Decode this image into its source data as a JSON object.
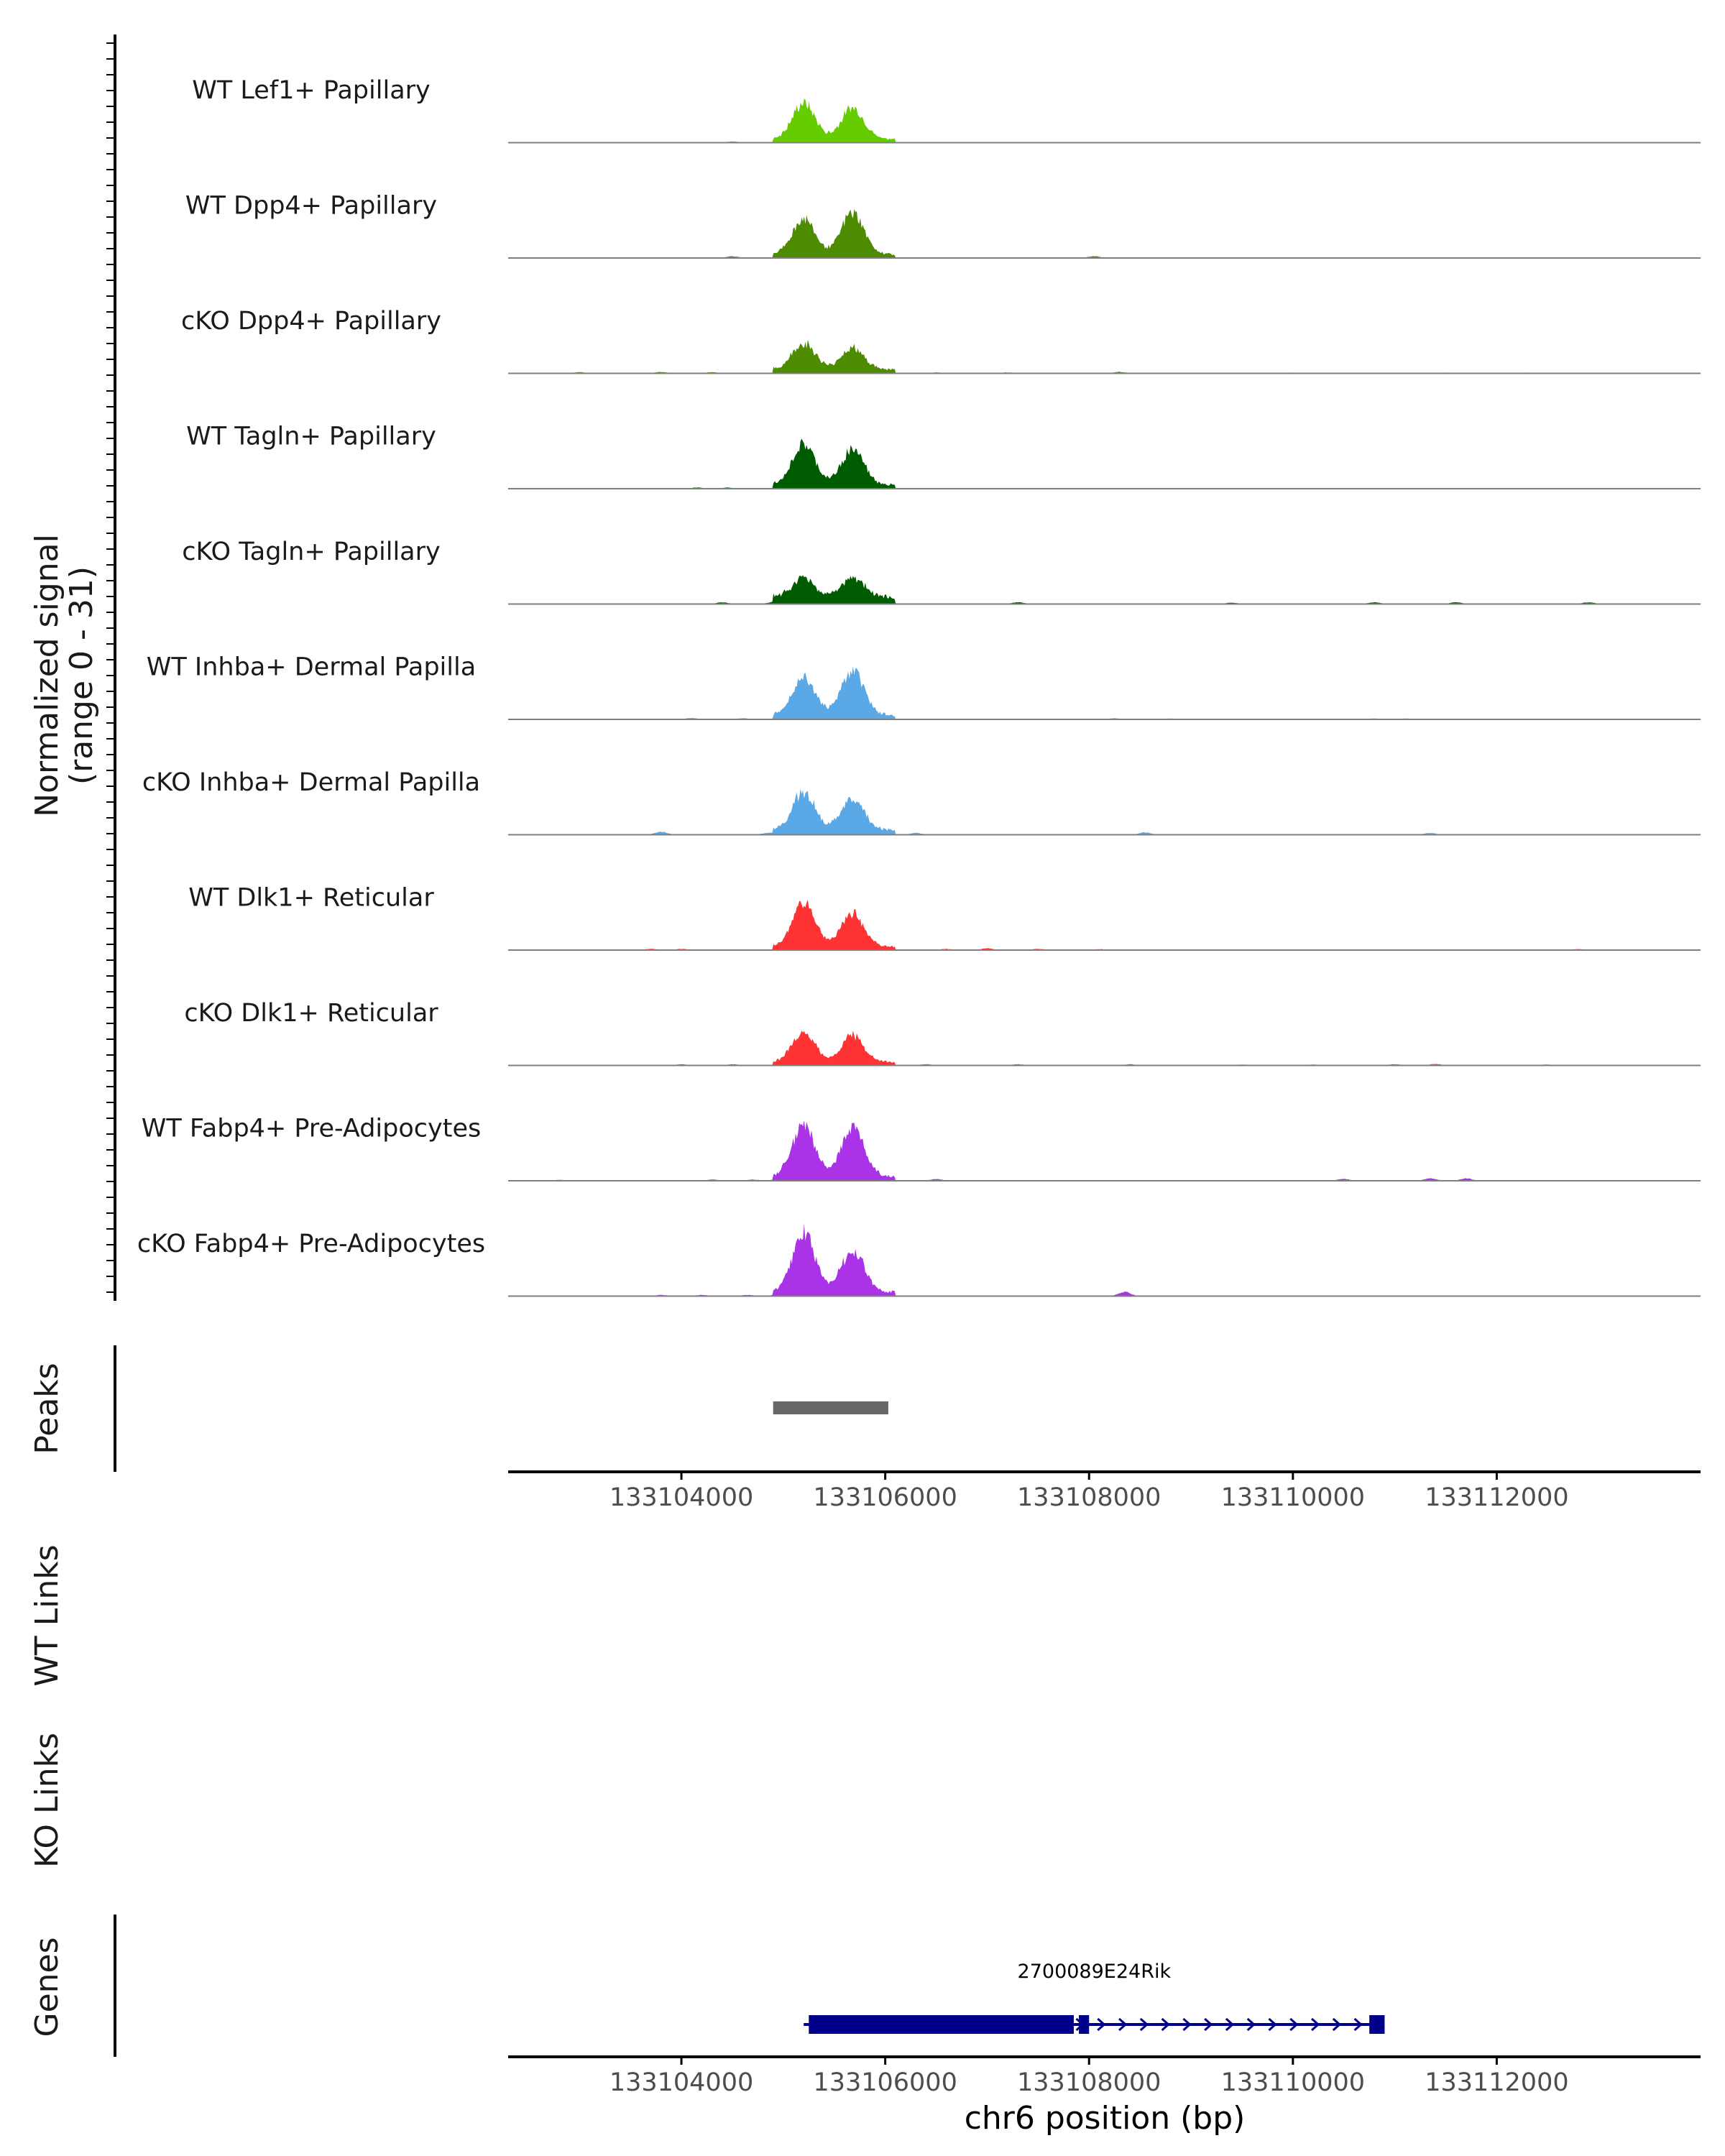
{
  "chart_data": {
    "type": "area",
    "title": "",
    "y_axis_label": "Normalized signal",
    "y_axis_range_label": "(range 0 - 31)",
    "ylim": [
      0,
      31
    ],
    "xlabel": "chr6 position (bp)",
    "xlim": [
      133102300,
      133114000
    ],
    "x_ticks": [
      133104000,
      133106000,
      133108000,
      133110000,
      133112000
    ],
    "x_tick_labels": [
      "133104000",
      "133106000",
      "133108000",
      "133110000",
      "133112000"
    ],
    "tracks": [
      {
        "name": "WT Lef1+ Papillary",
        "color": "#66cc00",
        "peak1": 31,
        "peak2": 27,
        "base": 3.5,
        "noise": [
          [
            133104500,
            1
          ],
          [
            133107800,
            0.6
          ],
          [
            133109500,
            0.6
          ],
          [
            133112800,
            0.6
          ]
        ]
      },
      {
        "name": "WT Dpp4+ Papillary",
        "color": "#4d8c00",
        "peak1": 31,
        "peak2": 36,
        "base": 3.5,
        "noise": [
          [
            133104500,
            1.5
          ],
          [
            133108050,
            1.5
          ],
          [
            133112950,
            0.6
          ],
          [
            133113300,
            0.6
          ]
        ]
      },
      {
        "name": "cKO Dpp4+ Papillary",
        "color": "#4d8c00",
        "peak1": 23,
        "peak2": 19,
        "base": 3.5,
        "noise": [
          [
            133103000,
            1
          ],
          [
            133103800,
            1.2
          ],
          [
            133104300,
            1
          ],
          [
            133106500,
            0.8
          ],
          [
            133107200,
            0.8
          ],
          [
            133108300,
            1.2
          ],
          [
            133110000,
            0.6
          ],
          [
            133111500,
            0.6
          ],
          [
            133112300,
            0.6
          ]
        ]
      },
      {
        "name": "WT Tagln+ Papillary",
        "color": "#005c00",
        "peak1": 35,
        "peak2": 31,
        "base": 3.5,
        "noise": [
          [
            133104150,
            1
          ],
          [
            133104450,
            1
          ]
        ]
      },
      {
        "name": "cKO Tagln+ Papillary",
        "color": "#005c00",
        "peak1": 16,
        "peak2": 18,
        "base": 6,
        "noise": [
          [
            133104400,
            1.5
          ],
          [
            133104900,
            1.5
          ],
          [
            133107300,
            1.5
          ],
          [
            133109400,
            1.2
          ],
          [
            133110800,
            1.5
          ],
          [
            133111600,
            1.5
          ],
          [
            133112900,
            1.5
          ]
        ]
      },
      {
        "name": "WT Inhba+ Dermal Papilla",
        "color": "#5aa9e6",
        "peak1": 34,
        "peak2": 38,
        "base": 4,
        "noise": [
          [
            133104100,
            1.2
          ],
          [
            133104600,
            1
          ],
          [
            133108250,
            1
          ],
          [
            133108800,
            0.8
          ],
          [
            133110800,
            0.8
          ],
          [
            133111100,
            0.8
          ]
        ]
      },
      {
        "name": "cKO Inhba+ Dermal Papilla",
        "color": "#5aa9e6",
        "peak1": 33,
        "peak2": 28,
        "base": 4,
        "noise": [
          [
            133103800,
            2.5
          ],
          [
            133104850,
            1.5
          ],
          [
            133106300,
            1.5
          ],
          [
            133108550,
            2
          ],
          [
            133111350,
            1.5
          ]
        ]
      },
      {
        "name": "WT Dlk1+ Reticular",
        "color": "#ff3333",
        "peak1": 38,
        "peak2": 29,
        "base": 3,
        "noise": [
          [
            133103700,
            1
          ],
          [
            133104000,
            1
          ],
          [
            133106600,
            1
          ],
          [
            133107000,
            1.5
          ],
          [
            133107500,
            1
          ],
          [
            133108100,
            0.8
          ],
          [
            133112800,
            0.8
          ]
        ]
      },
      {
        "name": "cKO Dlk1+ Reticular",
        "color": "#ff3333",
        "peak1": 26,
        "peak2": 23,
        "base": 3,
        "noise": [
          [
            133104000,
            1
          ],
          [
            133104500,
            1
          ],
          [
            133106400,
            1
          ],
          [
            133107300,
            1
          ],
          [
            133108400,
            1
          ],
          [
            133109500,
            0.8
          ],
          [
            133110200,
            0.8
          ],
          [
            133111000,
            1
          ],
          [
            133111400,
            1.2
          ],
          [
            133112500,
            0.8
          ],
          [
            133113200,
            0.6
          ]
        ]
      },
      {
        "name": "WT Fabp4+ Pre-Adipocytes",
        "color": "#aa33e8",
        "peak1": 45,
        "peak2": 42,
        "base": 4,
        "noise": [
          [
            133102800,
            0.8
          ],
          [
            133104300,
            1
          ],
          [
            133104700,
            1
          ],
          [
            133106500,
            1.5
          ],
          [
            133110500,
            1.5
          ],
          [
            133111350,
            2
          ],
          [
            133111700,
            2
          ]
        ]
      },
      {
        "name": "cKO Fabp4+ Pre-Adipocytes",
        "color": "#aa33e8",
        "peak1": 50,
        "peak2": 36,
        "base": 4,
        "noise": [
          [
            133103800,
            1
          ],
          [
            133104200,
            1
          ],
          [
            133104650,
            1
          ],
          [
            133108350,
            3.5
          ]
        ]
      }
    ],
    "peaks_label": "Peaks",
    "peak_regions": [
      [
        133104900,
        133106030
      ]
    ],
    "wt_links_label": "WT Links",
    "ko_links_label": "KO Links",
    "genes_label": "Genes",
    "genes": [
      {
        "name": "2700089E24Rik",
        "start": 133105200,
        "end": 133110900,
        "strand": "+",
        "exons": [
          [
            133105250,
            133107850
          ],
          [
            133107900,
            133108000
          ],
          [
            133110750,
            133110900
          ]
        ]
      }
    ]
  }
}
